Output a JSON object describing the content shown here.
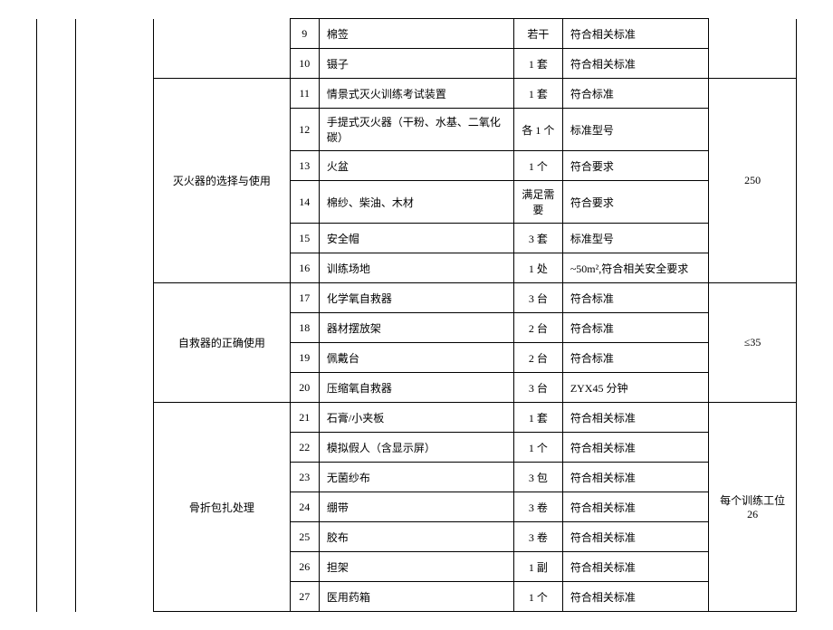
{
  "groups": [
    {
      "category": "",
      "value": "",
      "categoryOpenTop": true,
      "valueOpenTop": true,
      "rows": [
        {
          "idx": "9",
          "name": "棉签",
          "qty": "若干",
          "remark": "符合相关标准"
        },
        {
          "idx": "10",
          "name": "镊子",
          "qty": "1 套",
          "remark": "符合相关标准"
        }
      ]
    },
    {
      "category": "灭火器的选择与使用",
      "value": "250",
      "rows": [
        {
          "idx": "11",
          "name": "情景式灭火训练考试装置",
          "qty": "1 套",
          "remark": "符合标准"
        },
        {
          "idx": "12",
          "name": "手提式灭火器（干粉、水基、二氧化碳）",
          "qty": "各 1 个",
          "remark": "标准型号"
        },
        {
          "idx": "13",
          "name": "火盆",
          "qty": "1 个",
          "remark": "符合要求"
        },
        {
          "idx": "14",
          "name": "棉纱、柴油、木材",
          "qty": "满足需要",
          "remark": "符合要求"
        },
        {
          "idx": "15",
          "name": "安全帽",
          "qty": "3 套",
          "remark": "标准型号"
        },
        {
          "idx": "16",
          "name": "训练场地",
          "qty": "1 处",
          "remark": "~50m²,符合相关安全要求"
        }
      ]
    },
    {
      "category": "自救器的正确使用",
      "value": "≤35",
      "rows": [
        {
          "idx": "17",
          "name": "化学氧自救器",
          "qty": "3 台",
          "remark": "符合标准"
        },
        {
          "idx": "18",
          "name": "器材摆放架",
          "qty": "2 台",
          "remark": "符合标准"
        },
        {
          "idx": "19",
          "name": "佩戴台",
          "qty": "2 台",
          "remark": "符合标准"
        },
        {
          "idx": "20",
          "name": "压缩氧自救器",
          "qty": "3 台",
          "remark": "ZYX45 分钟"
        }
      ]
    },
    {
      "category": "骨折包扎处理",
      "value": "每个训练工位 26",
      "rows": [
        {
          "idx": "21",
          "name": "石膏/小夹板",
          "qty": "1 套",
          "remark": "符合相关标准"
        },
        {
          "idx": "22",
          "name": "模拟假人（含显示屏）",
          "qty": "1 个",
          "remark": "符合相关标准"
        },
        {
          "idx": "23",
          "name": "无菌纱布",
          "qty": "3 包",
          "remark": "符合相关标准"
        },
        {
          "idx": "24",
          "name": "绷带",
          "qty": "3 卷",
          "remark": "符合相关标准"
        },
        {
          "idx": "25",
          "name": "胶布",
          "qty": "3 卷",
          "remark": "符合相关标准"
        },
        {
          "idx": "26",
          "name": "担架",
          "qty": "1 副",
          "remark": "符合相关标准"
        },
        {
          "idx": "27",
          "name": "医用药箱",
          "qty": "1 个",
          "remark": "符合相关标准"
        }
      ]
    }
  ]
}
